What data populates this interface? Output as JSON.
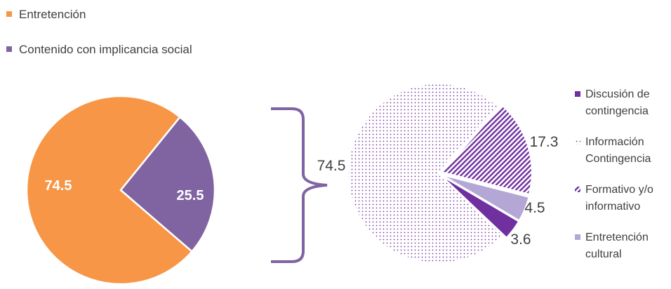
{
  "colors": {
    "entretencion": "#F79646",
    "social": "#8064A2",
    "discusion": "#7030A0",
    "informacion": "#7030A0",
    "formativo": "#7030A0",
    "cultural": "#B4A7D6",
    "bracket": "#8064A2",
    "text": "#404040"
  },
  "top_legend": [
    {
      "label": "Entretención",
      "color": "#F79646"
    },
    {
      "label": "Contenido con implicancia social",
      "color": "#8064A2"
    }
  ],
  "bracket_label": "74.5",
  "chart_data": [
    {
      "type": "pie",
      "title": "",
      "slices": [
        {
          "name": "Entretención",
          "value": 74.5,
          "label": "74.5",
          "color": "#F79646",
          "fill": "solid"
        },
        {
          "name": "Contenido con implicancia social",
          "value": 25.5,
          "label": "25.5",
          "color": "#8064A2",
          "fill": "solid"
        }
      ]
    },
    {
      "type": "pie",
      "title": "",
      "legend_position": "right",
      "slices": [
        {
          "name": "Información Contingencia",
          "legend_lines": [
            "Información",
            "Contingencia"
          ],
          "value": 74.5,
          "label": "74.5",
          "color": "#7030A0",
          "fill": "dots"
        },
        {
          "name": "Formativo y/o informativo",
          "legend_lines": [
            "Formativo y/o",
            "informativo"
          ],
          "value": 17.3,
          "label": "17.3",
          "color": "#7030A0",
          "fill": "diagonal"
        },
        {
          "name": "Entretención cultural",
          "legend_lines": [
            "Entretención",
            "cultural"
          ],
          "value": 4.5,
          "label": "4.5",
          "color": "#B4A7D6",
          "fill": "solid"
        },
        {
          "name": "Discusión de contingencia",
          "legend_lines": [
            "Discusión de",
            "contingencia"
          ],
          "value": 3.6,
          "label": "3.6",
          "color": "#7030A0",
          "fill": "solid"
        }
      ],
      "legend_order": [
        "Discusión de contingencia",
        "Información Contingencia",
        "Formativo y/o informativo",
        "Entretención cultural"
      ]
    }
  ]
}
